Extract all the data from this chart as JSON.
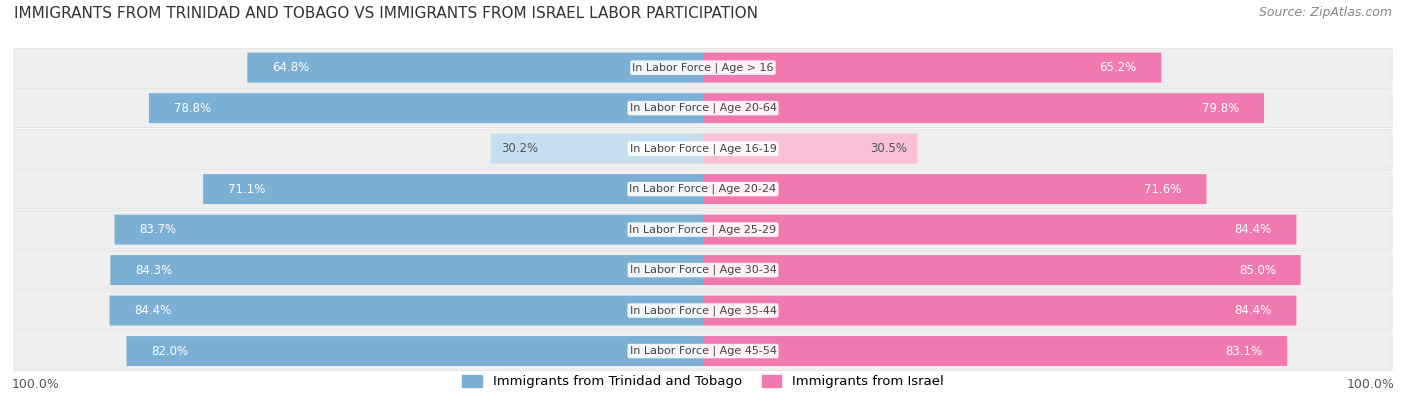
{
  "title": "IMMIGRANTS FROM TRINIDAD AND TOBAGO VS IMMIGRANTS FROM ISRAEL LABOR PARTICIPATION",
  "source": "Source: ZipAtlas.com",
  "categories": [
    "In Labor Force | Age > 16",
    "In Labor Force | Age 20-64",
    "In Labor Force | Age 16-19",
    "In Labor Force | Age 20-24",
    "In Labor Force | Age 25-29",
    "In Labor Force | Age 30-34",
    "In Labor Force | Age 35-44",
    "In Labor Force | Age 45-54"
  ],
  "trinidad_values": [
    64.8,
    78.8,
    30.2,
    71.1,
    83.7,
    84.3,
    84.4,
    82.0
  ],
  "israel_values": [
    65.2,
    79.8,
    30.5,
    71.6,
    84.4,
    85.0,
    84.4,
    83.1
  ],
  "trinidad_color": "#7bafd4",
  "israel_color": "#f07ab0",
  "trinidad_color_light": "#c5def0",
  "israel_color_light": "#f9c0d8",
  "row_bg_color": "#efefef",
  "label_color_white": "#ffffff",
  "label_color_dark": "#555555",
  "max_value": 100.0,
  "legend_label_trinidad": "Immigrants from Trinidad and Tobago",
  "legend_label_israel": "Immigrants from Israel",
  "title_fontsize": 11,
  "source_fontsize": 9,
  "bar_label_fontsize": 8.5,
  "category_fontsize": 8.0,
  "legend_fontsize": 9.5,
  "footer_value": "100.0%"
}
